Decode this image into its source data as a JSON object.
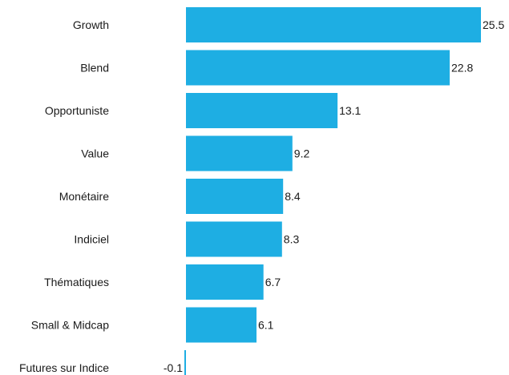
{
  "chart_data": {
    "type": "bar",
    "orientation": "horizontal",
    "title": "",
    "xlabel": "",
    "ylabel": "",
    "categories": [
      "Growth",
      "Blend",
      "Opportuniste",
      "Value",
      "Monétaire",
      "Indiciel",
      "Thématiques",
      "Small & Midcap",
      "Futures sur Indice"
    ],
    "values": [
      25.5,
      22.8,
      13.1,
      9.2,
      8.4,
      8.3,
      6.7,
      6.1,
      -0.1
    ],
    "value_labels": [
      "25.5",
      "22.8",
      "13.1",
      "9.2",
      "8.4",
      "8.3",
      "6.7",
      "6.1",
      "-0.1"
    ],
    "xlim": [
      -0.1,
      25.5
    ],
    "grid": false,
    "legend": "none",
    "bar_color": "#1eaee3"
  }
}
